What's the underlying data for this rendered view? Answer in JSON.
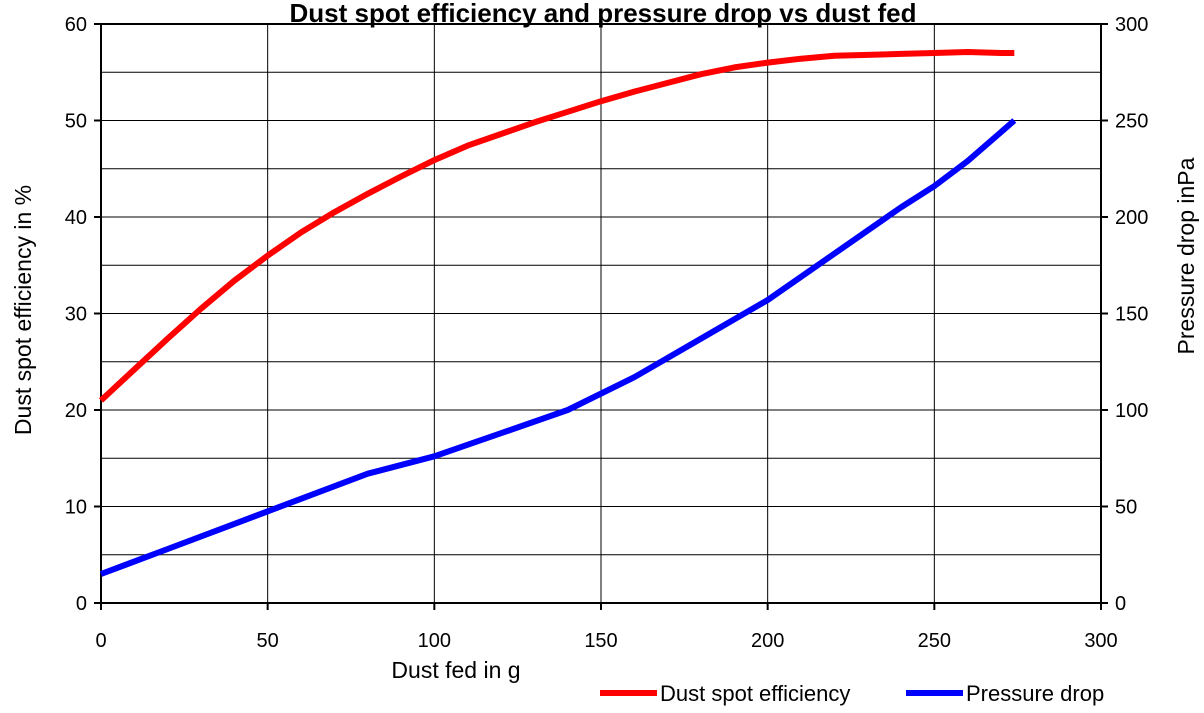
{
  "chart_data": {
    "type": "line",
    "title": "Dust spot efficiency and pressure drop vs dust fed",
    "xlabel": "Dust fed in g",
    "ylabel": "Dust spot efficiency in %",
    "y2label": "Pressure drop inPa",
    "xlim": [
      0,
      300
    ],
    "ylim": [
      0,
      60
    ],
    "y2lim": [
      0,
      300
    ],
    "xticks": [
      "0",
      "50",
      "100",
      "150",
      "200",
      "250",
      "300"
    ],
    "yticks": [
      "0",
      "10",
      "20",
      "30",
      "40",
      "50",
      "60"
    ],
    "y2ticks": [
      "0",
      "50",
      "100",
      "150",
      "200",
      "250",
      "300"
    ],
    "grid": true,
    "legend_position": "bottom-right",
    "series": [
      {
        "name": "Dust spot efficiency",
        "axis": "left",
        "color": "#ff0000",
        "x": [
          0,
          10,
          20,
          30,
          40,
          50,
          60,
          70,
          80,
          90,
          100,
          110,
          120,
          130,
          140,
          150,
          160,
          170,
          180,
          190,
          200,
          210,
          220,
          230,
          240,
          250,
          260,
          270,
          274
        ],
        "y": [
          21,
          24.2,
          27.4,
          30.5,
          33.4,
          36,
          38.4,
          40.5,
          42.4,
          44.2,
          45.9,
          47.4,
          48.6,
          49.8,
          50.9,
          52,
          53,
          53.9,
          54.8,
          55.5,
          56,
          56.4,
          56.7,
          56.8,
          56.9,
          57,
          57.1,
          57,
          57
        ]
      },
      {
        "name": "Pressure drop",
        "axis": "right",
        "color": "#0000ff",
        "x": [
          0,
          20,
          40,
          60,
          80,
          100,
          120,
          140,
          160,
          180,
          200,
          220,
          240,
          250,
          260,
          270,
          274
        ],
        "y": [
          15,
          28,
          41,
          54,
          67,
          76,
          88,
          100,
          117,
          137,
          157,
          181,
          205,
          216,
          229,
          244,
          250
        ]
      }
    ]
  }
}
